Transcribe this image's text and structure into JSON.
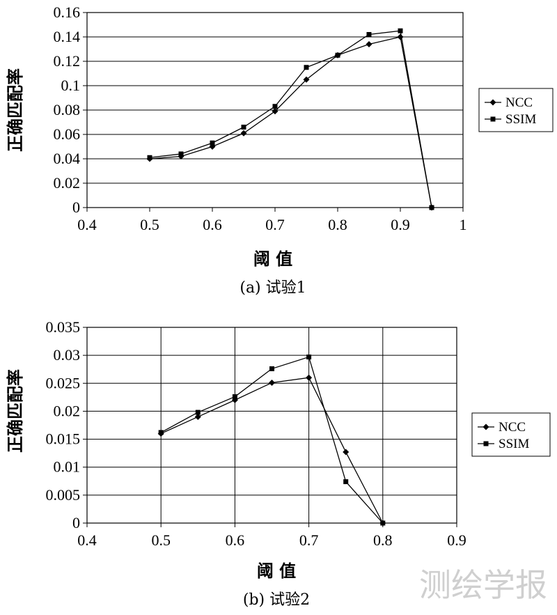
{
  "watermark": "测绘学报",
  "chart_data": [
    {
      "type": "line",
      "caption": "(a) 试验1",
      "xlabel": "阈 值",
      "ylabel": "正确匹配率",
      "xlim": [
        0.4,
        1.0
      ],
      "ylim": [
        0,
        0.16
      ],
      "xticks": [
        "0.4",
        "0.5",
        "0.6",
        "0.7",
        "0.8",
        "0.9",
        "1"
      ],
      "yticks": [
        "0",
        "0.02",
        "0.04",
        "0.06",
        "0.08",
        "0.1",
        "0.12",
        "0.14",
        "0.16"
      ],
      "grid": "horizontal",
      "legend_position": "right",
      "series": [
        {
          "name": "NCC",
          "marker": "diamond",
          "x": [
            0.5,
            0.55,
            0.6,
            0.65,
            0.7,
            0.75,
            0.8,
            0.85,
            0.9,
            0.95
          ],
          "y": [
            0.04,
            0.042,
            0.05,
            0.061,
            0.079,
            0.105,
            0.125,
            0.134,
            0.14,
            0
          ]
        },
        {
          "name": "SSIM",
          "marker": "square",
          "x": [
            0.5,
            0.55,
            0.6,
            0.65,
            0.7,
            0.75,
            0.8,
            0.85,
            0.9,
            0.95
          ],
          "y": [
            0.041,
            0.044,
            0.053,
            0.066,
            0.083,
            0.115,
            0.125,
            0.142,
            0.145,
            0
          ]
        }
      ]
    },
    {
      "type": "line",
      "caption": "(b) 试验2",
      "xlabel": "阈 值",
      "ylabel": "正确匹配率",
      "xlim": [
        0.4,
        0.9
      ],
      "ylim": [
        0,
        0.035
      ],
      "xticks": [
        "0.4",
        "0.5",
        "0.6",
        "0.7",
        "0.8",
        "0.9"
      ],
      "yticks": [
        "0",
        "0.005",
        "0.01",
        "0.015",
        "0.02",
        "0.025",
        "0.03",
        "0.035"
      ],
      "grid": "both",
      "legend_position": "right",
      "series": [
        {
          "name": "NCC",
          "marker": "diamond",
          "x": [
            0.5,
            0.55,
            0.6,
            0.65,
            0.7,
            0.75,
            0.8
          ],
          "y": [
            0.016,
            0.019,
            0.022,
            0.0251,
            0.026,
            0.0127,
            0
          ]
        },
        {
          "name": "SSIM",
          "marker": "square",
          "x": [
            0.5,
            0.55,
            0.6,
            0.65,
            0.7,
            0.75,
            0.8
          ],
          "y": [
            0.0162,
            0.0198,
            0.0226,
            0.0276,
            0.0297,
            0.0074,
            0
          ]
        }
      ]
    }
  ]
}
